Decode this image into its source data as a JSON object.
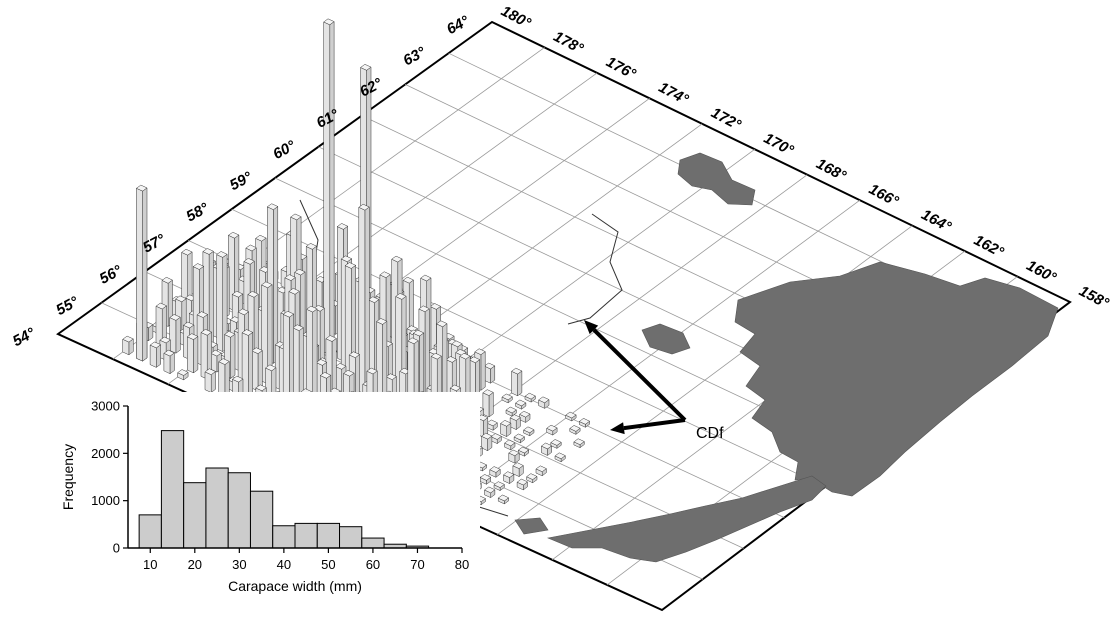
{
  "map": {
    "latitude_labels": [
      "54°",
      "55°",
      "56°",
      "57°",
      "58°",
      "59°",
      "60°",
      "61°",
      "62°",
      "63°",
      "64°"
    ],
    "longitude_labels": [
      "180°",
      "178°",
      "176°",
      "174°",
      "172°",
      "170°",
      "168°",
      "166°",
      "164°",
      "162°",
      "160°",
      "158°"
    ],
    "annotation": "CDf",
    "colors": {
      "land": "#6e6e6e",
      "bar_face": "#e4e4e4",
      "grid": "#9a9a9a",
      "coast": "#333333"
    }
  },
  "chart_data": {
    "type": "bar",
    "xlabel": "Carapace width (mm)",
    "ylabel": "Frequency",
    "xlim": [
      5,
      80
    ],
    "ylim": [
      0,
      3000
    ],
    "xticks": [
      10,
      20,
      30,
      40,
      50,
      60,
      70,
      80
    ],
    "yticks": [
      0,
      1000,
      2000,
      3000
    ],
    "bin_width": 5,
    "bin_centers": [
      10,
      15,
      20,
      25,
      30,
      35,
      40,
      45,
      50,
      55,
      60,
      65,
      70
    ],
    "values": [
      700,
      2480,
      1380,
      1690,
      1590,
      1200,
      470,
      520,
      520,
      450,
      210,
      80,
      40
    ],
    "bar_color": "#cccccc"
  }
}
